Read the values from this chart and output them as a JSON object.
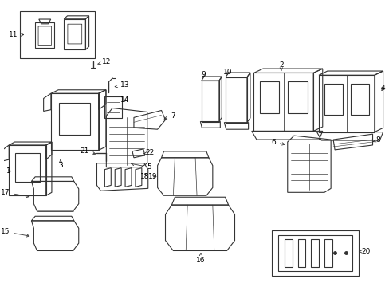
{
  "bg_color": "#ffffff",
  "line_color": "#333333",
  "fig_width": 4.89,
  "fig_height": 3.6,
  "dpi": 100
}
